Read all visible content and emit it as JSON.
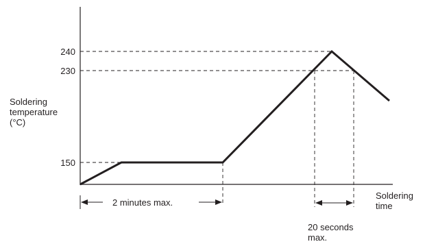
{
  "chart_data": {
    "type": "line",
    "ylabel_lines": [
      "Soldering",
      "temperature",
      "(°C)"
    ],
    "xlabel_lines": [
      "Soldering",
      "time"
    ],
    "y_ticks": [
      "240",
      "230",
      "150"
    ],
    "profile": [
      {
        "phase": "start",
        "temperature": "ambient"
      },
      {
        "phase": "preheat reached",
        "temperature": 150
      },
      {
        "phase": "preheat end",
        "temperature": 150,
        "duration_label": "2 minutes max."
      },
      {
        "phase": "peak",
        "temperature": 240
      },
      {
        "phase": "end",
        "temperature": "falling"
      }
    ],
    "annotations": {
      "preheat": "2 minutes max.",
      "peak_window": [
        "20 seconds",
        "max."
      ]
    },
    "colors": {
      "line": "#231f20",
      "text": "#231f20"
    }
  }
}
